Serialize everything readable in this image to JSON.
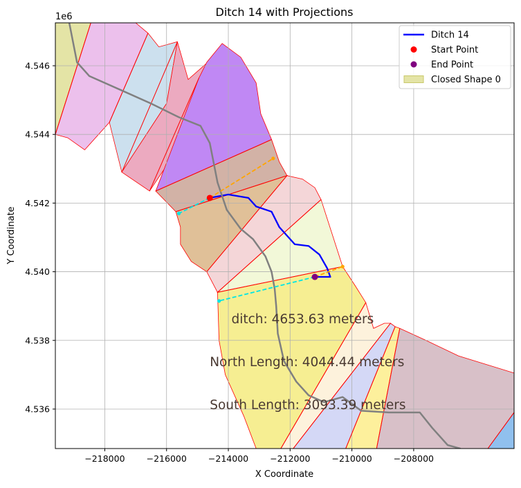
{
  "chart_data": {
    "type": "line",
    "title": "Ditch 14 with Projections",
    "xlabel": "X Coordinate",
    "ylabel": "Y Coordinate",
    "y_offset_label": "1e6",
    "xlim": [
      -219600,
      -204750
    ],
    "ylim": [
      4.53485,
      4.54725
    ],
    "x_ticks": [
      -218000,
      -216000,
      -214000,
      -212000,
      -210000,
      -208000
    ],
    "x_tick_labels": [
      "−218000",
      "−216000",
      "−214000",
      "−212000",
      "−210000",
      "−208000"
    ],
    "y_ticks": [
      4.536,
      4.538,
      4.54,
      4.542,
      4.544,
      4.546
    ],
    "y_tick_labels": [
      "4.536",
      "4.538",
      "4.540",
      "4.542",
      "4.544",
      "4.546"
    ],
    "grid": true,
    "legend_position": "top-right",
    "legend": [
      {
        "label": "Ditch 14",
        "kind": "line",
        "color": "#0000ff"
      },
      {
        "label": "Start Point",
        "kind": "point",
        "color": "#ff0000"
      },
      {
        "label": "End Point",
        "kind": "point",
        "color": "#800080"
      },
      {
        "label": "Closed Shape 0",
        "kind": "patch",
        "color": "#e4e4a6"
      }
    ],
    "annotations": [
      {
        "text": "ditch: 4653.63 meters",
        "x": -213900,
        "y": 4.5385
      },
      {
        "text": "North Length: 4044.44 meters",
        "x": -214600,
        "y": 4.53725
      },
      {
        "text": "South Length: 3093.39 meters",
        "x": -214600,
        "y": 4.536
      }
    ],
    "shapes": [
      {
        "color": "#e4e4a6",
        "points": [
          [
            -219600,
            4.54725
          ],
          [
            -218450,
            4.54725
          ],
          [
            -219600,
            4.544
          ]
        ]
      },
      {
        "color": "#ecc0ec",
        "points": [
          [
            -218450,
            4.54725
          ],
          [
            -217000,
            4.54725
          ],
          [
            -216600,
            4.54695
          ],
          [
            -217850,
            4.54435
          ],
          [
            -218650,
            4.54355
          ],
          [
            -219200,
            4.5439
          ],
          [
            -219600,
            4.544
          ]
        ]
      },
      {
        "color": "#cce0ee",
        "points": [
          [
            -216600,
            4.54695
          ],
          [
            -216250,
            4.54655
          ],
          [
            -215650,
            4.5467
          ],
          [
            -216000,
            4.5449
          ],
          [
            -217450,
            4.5429
          ],
          [
            -217850,
            4.54435
          ]
        ]
      },
      {
        "color": "#ecaac0",
        "points": [
          [
            -215650,
            4.5467
          ],
          [
            -215300,
            4.5456
          ],
          [
            -214100,
            4.54655
          ],
          [
            -215100,
            4.5443
          ],
          [
            -216550,
            4.54235
          ],
          [
            -217450,
            4.5429
          ],
          [
            -216000,
            4.5449
          ]
        ]
      },
      {
        "color": "#c088f4",
        "points": [
          [
            -214950,
            4.54565
          ],
          [
            -214700,
            4.5461
          ],
          [
            -214200,
            4.54665
          ],
          [
            -213600,
            4.54625
          ],
          [
            -213100,
            4.5455
          ],
          [
            -212950,
            4.5446
          ],
          [
            -212600,
            4.54385
          ],
          [
            -216350,
            4.54235
          ]
        ]
      },
      {
        "color": "#d2b2a6",
        "points": [
          [
            -216350,
            4.54235
          ],
          [
            -212600,
            4.54385
          ],
          [
            -212350,
            4.5432
          ],
          [
            -212100,
            4.5428
          ],
          [
            -215700,
            4.54175
          ]
        ]
      },
      {
        "color": "#e0c098",
        "points": [
          [
            -215700,
            4.54175
          ],
          [
            -212100,
            4.5428
          ],
          [
            -214700,
            4.54
          ],
          [
            -215200,
            4.5403
          ],
          [
            -215550,
            4.5408
          ],
          [
            -215550,
            4.5413
          ]
        ]
      },
      {
        "color": "#f4d6d8",
        "points": [
          [
            -212100,
            4.5428
          ],
          [
            -211600,
            4.5427
          ],
          [
            -211200,
            4.54245
          ],
          [
            -211000,
            4.5421
          ],
          [
            -214350,
            4.5394
          ],
          [
            -214700,
            4.54
          ]
        ]
      },
      {
        "color": "#f2f8d8",
        "points": [
          [
            -211000,
            4.5421
          ],
          [
            -210300,
            4.54015
          ],
          [
            -214350,
            4.5394
          ]
        ]
      },
      {
        "color": "#f6ee92",
        "points": [
          [
            -214350,
            4.5394
          ],
          [
            -210300,
            4.54015
          ],
          [
            -209900,
            4.5396
          ],
          [
            -209550,
            4.5391
          ],
          [
            -212300,
            4.53485
          ],
          [
            -213100,
            4.53485
          ],
          [
            -213500,
            4.5358
          ],
          [
            -214100,
            4.537
          ],
          [
            -214300,
            4.538
          ]
        ]
      },
      {
        "color": "#fdf2dc",
        "points": [
          [
            -209550,
            4.5391
          ],
          [
            -209300,
            4.53835
          ],
          [
            -208950,
            4.5385
          ],
          [
            -208750,
            4.5385
          ],
          [
            -211900,
            4.53485
          ],
          [
            -212300,
            4.53485
          ]
        ]
      },
      {
        "color": "#d4d8f6",
        "points": [
          [
            -208750,
            4.5385
          ],
          [
            -208600,
            4.5384
          ],
          [
            -210200,
            4.53485
          ],
          [
            -211900,
            4.53485
          ]
        ]
      },
      {
        "color": "#fdf09c",
        "points": [
          [
            -208600,
            4.5384
          ],
          [
            -208450,
            4.53835
          ],
          [
            -209200,
            4.53485
          ],
          [
            -210200,
            4.53485
          ]
        ]
      },
      {
        "color": "#d8c0c8",
        "points": [
          [
            -208450,
            4.53835
          ],
          [
            -207600,
            4.538
          ],
          [
            -206550,
            4.53755
          ],
          [
            -204750,
            4.53705
          ],
          [
            -204750,
            4.5359
          ],
          [
            -205600,
            4.53485
          ],
          [
            -209200,
            4.53485
          ]
        ]
      },
      {
        "color": "#90c0ee",
        "points": [
          [
            -204750,
            4.5359
          ],
          [
            -205600,
            4.53485
          ],
          [
            -204750,
            4.53485
          ]
        ]
      }
    ],
    "boundaries": [
      [
        [
          -218450,
          4.54725
        ],
        [
          -219600,
          4.544
        ]
      ],
      [
        [
          -216600,
          4.54695
        ],
        [
          -217850,
          4.54435
        ]
      ],
      [
        [
          -215650,
          4.5467
        ],
        [
          -217450,
          4.5429
        ]
      ],
      [
        [
          -214950,
          4.54565
        ],
        [
          -216550,
          4.54235
        ]
      ],
      [
        [
          -212600,
          4.54385
        ],
        [
          -216350,
          4.54235
        ]
      ],
      [
        [
          -212100,
          4.5428
        ],
        [
          -215700,
          4.54175
        ]
      ],
      [
        [
          -212100,
          4.5428
        ],
        [
          -214700,
          4.54
        ]
      ],
      [
        [
          -211000,
          4.5421
        ],
        [
          -214350,
          4.5394
        ]
      ],
      [
        [
          -210300,
          4.54015
        ],
        [
          -214350,
          4.5394
        ]
      ],
      [
        [
          -209550,
          4.5391
        ],
        [
          -212300,
          4.53485
        ]
      ],
      [
        [
          -208750,
          4.5385
        ],
        [
          -211900,
          4.53485
        ]
      ],
      [
        [
          -208600,
          4.5384
        ],
        [
          -210200,
          4.53485
        ]
      ],
      [
        [
          -208450,
          4.53835
        ],
        [
          -209200,
          4.53485
        ]
      ],
      [
        [
          -204750,
          4.5359
        ],
        [
          -205600,
          4.53485
        ]
      ]
    ],
    "series": [
      {
        "name": "Ditch 14",
        "style": "line",
        "color": "#0000ff",
        "points": [
          [
            -214600,
            4.54215
          ],
          [
            -214000,
            4.54225
          ],
          [
            -213350,
            4.54215
          ],
          [
            -213100,
            4.5419
          ],
          [
            -212600,
            4.54175
          ],
          [
            -212350,
            4.5413
          ],
          [
            -211850,
            4.5408
          ],
          [
            -211400,
            4.54075
          ],
          [
            -211050,
            4.5405
          ],
          [
            -210800,
            4.5401
          ],
          [
            -210700,
            4.53985
          ],
          [
            -211200,
            4.53985
          ]
        ]
      },
      {
        "style": "line",
        "color": "#808080",
        "points": [
          [
            -219150,
            4.54725
          ],
          [
            -218900,
            4.5461
          ],
          [
            -218500,
            4.5457
          ],
          [
            -217500,
            4.5453
          ],
          [
            -216500,
            4.5449
          ],
          [
            -215600,
            4.5445
          ],
          [
            -214900,
            4.54425
          ],
          [
            -214600,
            4.54375
          ],
          [
            -214350,
            4.5426
          ],
          [
            -214050,
            4.5418
          ],
          [
            -213600,
            4.54125
          ],
          [
            -213200,
            4.54095
          ],
          [
            -212800,
            4.54045
          ],
          [
            -212600,
            4.54
          ],
          [
            -212500,
            4.5395
          ],
          [
            -212450,
            4.539
          ],
          [
            -212400,
            4.5382
          ],
          [
            -212200,
            4.5374
          ],
          [
            -211800,
            4.5368
          ],
          [
            -211400,
            4.5364
          ],
          [
            -210900,
            4.5362
          ],
          [
            -210300,
            4.53635
          ],
          [
            -209700,
            4.53595
          ],
          [
            -208800,
            4.5359
          ],
          [
            -207800,
            4.5359
          ],
          [
            -207400,
            4.53545
          ],
          [
            -206900,
            4.53495
          ],
          [
            -206500,
            4.53485
          ]
        ]
      },
      {
        "style": "dashed",
        "color": "#ffa500",
        "points": [
          [
            -214600,
            4.54215
          ],
          [
            -212550,
            4.5433
          ]
        ]
      },
      {
        "style": "dashed",
        "color": "#00e5e5",
        "points": [
          [
            -214600,
            4.54215
          ],
          [
            -215600,
            4.5417
          ]
        ]
      },
      {
        "style": "dashed",
        "color": "#ffa500",
        "points": [
          [
            -211200,
            4.53985
          ],
          [
            -210300,
            4.54015
          ]
        ]
      },
      {
        "style": "dashed",
        "color": "#00e5e5",
        "points": [
          [
            -211200,
            4.53985
          ],
          [
            -214300,
            4.53915
          ]
        ]
      }
    ],
    "markers": [
      {
        "name": "Start Point",
        "x": -214600,
        "y": 4.54215,
        "color": "#ff0000"
      },
      {
        "name": "End Point",
        "x": -211200,
        "y": 4.53985,
        "color": "#800080"
      },
      {
        "x": -212550,
        "y": 4.5433,
        "color": "#ffa500"
      },
      {
        "x": -215600,
        "y": 4.5417,
        "color": "#00e5e5"
      },
      {
        "x": -210300,
        "y": 4.54015,
        "color": "#ffa500"
      },
      {
        "x": -214300,
        "y": 4.53915,
        "color": "#00e5e5"
      }
    ]
  }
}
